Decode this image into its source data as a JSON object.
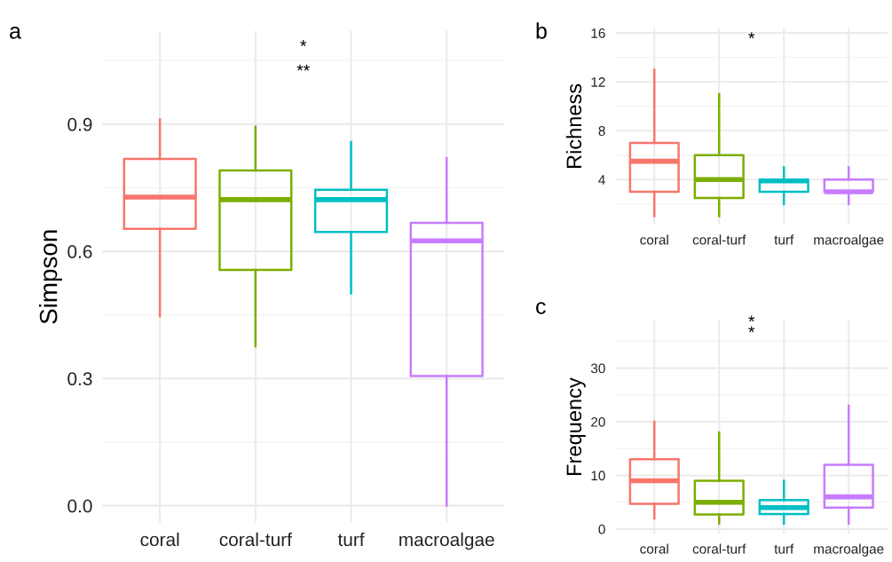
{
  "chart_data": [
    {
      "type": "box",
      "title": "a",
      "ylabel": "Simpson",
      "categories": [
        "coral",
        "coral-turf",
        "turf",
        "macroalgae"
      ],
      "colors": [
        "#f8766d",
        "#7cae00",
        "#00bfc4",
        "#c77cff"
      ],
      "boxes": [
        {
          "low": 0.447,
          "q1": 0.653,
          "median": 0.728,
          "q3": 0.818,
          "high": 0.911
        },
        {
          "low": 0.376,
          "q1": 0.556,
          "median": 0.722,
          "q3": 0.791,
          "high": 0.894
        },
        {
          "low": 0.501,
          "q1": 0.646,
          "median": 0.722,
          "q3": 0.745,
          "high": 0.858
        },
        {
          "low": 0.0,
          "q1": 0.306,
          "median": 0.625,
          "q3": 0.667,
          "high": 0.82
        }
      ],
      "ylim": [
        -0.04,
        1.12
      ],
      "yticks": [
        {
          "value": 0,
          "label": "0.0"
        },
        0.3,
        0.6,
        0.9
      ],
      "grid": true,
      "annotations": [
        "**",
        "*"
      ]
    },
    {
      "type": "box",
      "title": "b",
      "ylabel": "Richness",
      "categories": [
        "coral",
        "coral-turf",
        "turf",
        "macroalgae"
      ],
      "colors": [
        "#f8766d",
        "#7cae00",
        "#00bfc4",
        "#c77cff"
      ],
      "boxes": [
        {
          "low": 1,
          "q1": 3,
          "median": 5.5,
          "q3": 7,
          "high": 13
        },
        {
          "low": 1,
          "q1": 2.5,
          "median": 4,
          "q3": 6,
          "high": 11
        },
        {
          "low": 2,
          "q1": 3,
          "median": 3.9,
          "q3": 4,
          "high": 5
        },
        {
          "low": 2,
          "q1": 3,
          "median": 3,
          "q3": 4,
          "high": 5
        }
      ],
      "ylim": [
        0.3,
        16.4
      ],
      "yticks": [
        4,
        8,
        12,
        16
      ],
      "grid": true,
      "annotations": [
        "*"
      ]
    },
    {
      "type": "box",
      "title": "c",
      "ylabel": "Frequency",
      "categories": [
        "coral",
        "coral-turf",
        "turf",
        "macroalgae"
      ],
      "colors": [
        "#f8766d",
        "#7cae00",
        "#00bfc4",
        "#c77cff"
      ],
      "boxes": [
        {
          "low": 2,
          "q1": 4.7,
          "median": 9,
          "q3": 13,
          "high": 20
        },
        {
          "low": 1,
          "q1": 2.7,
          "median": 5,
          "q3": 9,
          "high": 18
        },
        {
          "low": 1,
          "q1": 2.8,
          "median": 4,
          "q3": 5.4,
          "high": 9
        },
        {
          "low": 1,
          "q1": 4,
          "median": 6,
          "q3": 12,
          "high": 23
        }
      ],
      "ylim": [
        -0.9,
        38.9
      ],
      "yticks": [
        0,
        10,
        20,
        30
      ],
      "grid": true,
      "annotations": [
        "*",
        "*"
      ]
    }
  ]
}
